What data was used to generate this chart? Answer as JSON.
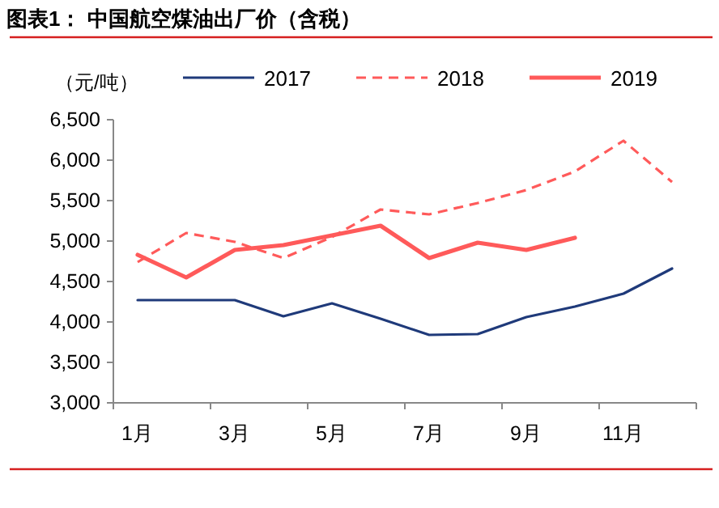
{
  "chart_data": {
    "type": "line",
    "title": "图表1：  中国航空煤油出厂价（含税）",
    "ylabel": "（元/吨）",
    "categories": [
      "1月",
      null,
      "3月",
      null,
      "5月",
      null,
      "7月",
      null,
      "9月",
      null,
      "11月",
      null
    ],
    "series": [
      {
        "name": "2017",
        "color": "#1f3a7a",
        "line_style": "solid",
        "values": [
          4270,
          4270,
          4270,
          4070,
          4230,
          4040,
          3840,
          3850,
          4060,
          4190,
          4350,
          4660
        ]
      },
      {
        "name": "2018",
        "color": "#ff5a5a",
        "line_style": "dashed",
        "values": [
          4740,
          5100,
          4990,
          4790,
          5050,
          5390,
          5330,
          5470,
          5630,
          5860,
          6240,
          5730
        ]
      },
      {
        "name": "2019",
        "color": "#ff5a5a",
        "line_style": "solid",
        "values": [
          4830,
          4550,
          4890,
          4950,
          5070,
          5190,
          4790,
          4980,
          4890,
          5040,
          null,
          null
        ]
      }
    ],
    "ylim": [
      3000,
      6500
    ],
    "yticks": [
      {
        "value": 3000,
        "label": "3,000"
      },
      {
        "value": 3500,
        "label": "3,500"
      },
      {
        "value": 4000,
        "label": "4,000"
      },
      {
        "value": 4500,
        "label": "4,500"
      },
      {
        "value": 5000,
        "label": "5,000"
      },
      {
        "value": 5500,
        "label": "5,500"
      },
      {
        "value": 6000,
        "label": "6,000"
      },
      {
        "value": 6500,
        "label": "6,500"
      }
    ],
    "legend": "top",
    "grid": false,
    "marker": "none"
  }
}
